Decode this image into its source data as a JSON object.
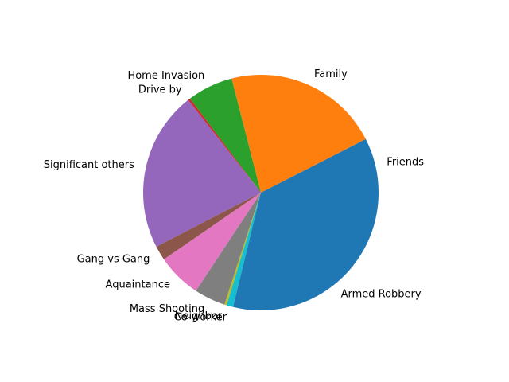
{
  "chart_data": {
    "type": "pie",
    "title": "",
    "start_angle_deg": 0,
    "direction": "counterclockwise",
    "slices": [
      {
        "label": "Friends",
        "value": 7.5,
        "color": "#1f77b4"
      },
      {
        "label": "Family",
        "value": 21.5,
        "color": "#ff7f0e"
      },
      {
        "label": "Home Invasion",
        "value": 6.3,
        "color": "#2ca02c"
      },
      {
        "label": "Drive by",
        "value": 0.3,
        "color": "#d62728"
      },
      {
        "label": "Significant others",
        "value": 22.0,
        "color": "#9467bd"
      },
      {
        "label": "Gang vs Gang",
        "value": 2.0,
        "color": "#8c564b"
      },
      {
        "label": "Aquaintance",
        "value": 6.1,
        "color": "#e377c2"
      },
      {
        "label": "Mass Shooting",
        "value": 4.3,
        "color": "#7f7f7f"
      },
      {
        "label": "Neighbor",
        "value": 0.3,
        "color": "#bcbd22"
      },
      {
        "label": "Co-worker",
        "value": 0.9,
        "color": "#17becf"
      },
      {
        "label": "Armed Robbery",
        "value": 28.8,
        "color": "#1f77b4"
      }
    ]
  }
}
